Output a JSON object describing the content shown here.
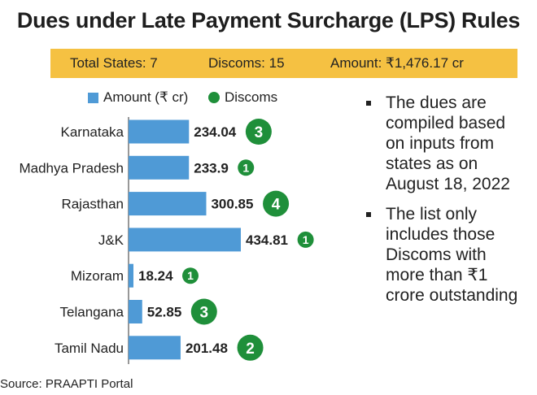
{
  "title": "Dues under Late Payment Surcharge (LPS) Rules",
  "summary": {
    "states": "Total States: 7",
    "discoms": "Discoms: 15",
    "amount": "Amount: ₹1,476.17 cr"
  },
  "legend": {
    "amount": "Amount (₹ cr)",
    "discoms": "Discoms"
  },
  "colors": {
    "bar": "#4f9ad6",
    "discom_circle": "#1f8f3a",
    "summary_band": "#f5c142"
  },
  "chart_data": {
    "type": "bar",
    "orientation": "horizontal",
    "categories": [
      "Karnataka",
      "Madhya Pradesh",
      "Rajasthan",
      "J&K",
      "Mizoram",
      "Telangana",
      "Tamil Nadu"
    ],
    "series": [
      {
        "name": "Amount (₹ cr)",
        "values": [
          234.04,
          233.9,
          300.85,
          434.81,
          18.24,
          52.85,
          201.48
        ]
      },
      {
        "name": "Discoms",
        "values": [
          3,
          1,
          4,
          1,
          1,
          3,
          2
        ]
      }
    ],
    "value_labels": [
      "234.04",
      "233.9",
      "300.85",
      "434.81",
      "18.24",
      "52.85",
      "201.48"
    ],
    "xlim": [
      0,
      434.81
    ]
  },
  "notes": [
    "The dues are compiled based on inputs from states as on August 18, 2022",
    "The list only includes those Discoms with more than ₹1 crore outstanding"
  ],
  "source": "Source: PRAAPTI Portal"
}
